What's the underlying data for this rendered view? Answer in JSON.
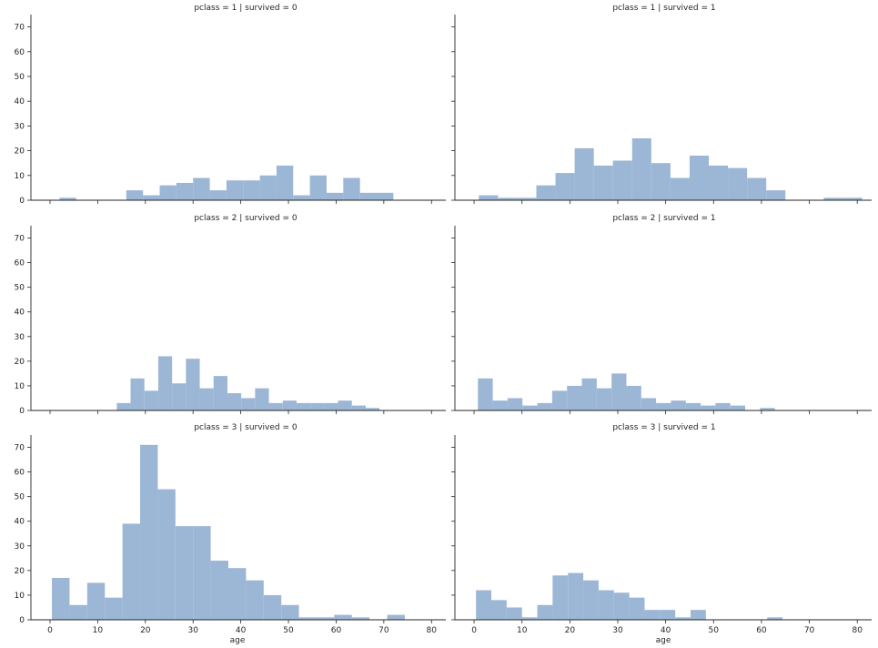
{
  "figure": {
    "xlabel": "age",
    "bar_color": "#9cb6d5",
    "axis_color": "#262626"
  },
  "chart_data": [
    {
      "type": "bar",
      "title": "pclass = 1 | survived = 0",
      "bin_width": 3.5,
      "bin_starts": [
        2,
        5.5,
        9,
        12.5,
        16,
        19.5,
        23,
        26.5,
        30,
        33.5,
        37,
        40.5,
        44,
        47.5,
        51,
        54.5,
        58,
        61.5,
        65,
        68.5
      ],
      "values": [
        1,
        0,
        0,
        0,
        4,
        2,
        6,
        7,
        9,
        4,
        8,
        8,
        10,
        14,
        2,
        10,
        3,
        9,
        3,
        3
      ],
      "xlim": [
        -4,
        83
      ],
      "ylim": [
        0,
        75
      ],
      "xticks": [],
      "yticks": [
        "0",
        "10",
        "20",
        "30",
        "40",
        "50",
        "60",
        "70"
      ]
    },
    {
      "type": "bar",
      "title": "pclass = 1 | survived = 1",
      "bin_width": 4,
      "bin_starts": [
        1,
        5,
        9,
        13,
        17,
        21,
        25,
        29,
        33,
        37,
        41,
        45,
        49,
        53,
        57,
        61,
        65,
        69,
        73,
        77
      ],
      "values": [
        2,
        1,
        1,
        6,
        11,
        21,
        14,
        16,
        25,
        15,
        9,
        18,
        14,
        13,
        9,
        4,
        0,
        0,
        1,
        1
      ],
      "xlim": [
        -4,
        83
      ],
      "ylim": [
        0,
        75
      ],
      "xticks": [],
      "yticks": []
    },
    {
      "type": "bar",
      "title": "pclass = 2 | survived = 0",
      "bin_width": 2.9,
      "bin_starts": [
        14,
        16.9,
        19.8,
        22.7,
        25.6,
        28.5,
        31.4,
        34.3,
        37.2,
        40.1,
        43,
        45.9,
        48.8,
        51.7,
        54.6,
        57.5,
        60.4,
        63.3,
        66.2
      ],
      "values": [
        3,
        13,
        8,
        22,
        11,
        21,
        9,
        14,
        7,
        5,
        9,
        3,
        4,
        3,
        3,
        3,
        4,
        2,
        1
      ],
      "xlim": [
        -4,
        83
      ],
      "ylim": [
        0,
        75
      ],
      "xticks": [],
      "yticks": [
        "0",
        "10",
        "20",
        "30",
        "40",
        "50",
        "60",
        "70"
      ]
    },
    {
      "type": "bar",
      "title": "pclass = 2 | survived = 1",
      "bin_width": 3.1,
      "bin_starts": [
        0.8,
        3.9,
        7,
        10.1,
        13.2,
        16.3,
        19.4,
        22.5,
        25.6,
        28.7,
        31.8,
        34.9,
        38,
        41.1,
        44.2,
        47.3,
        50.4,
        53.5,
        56.6,
        59.7
      ],
      "values": [
        13,
        4,
        5,
        2,
        3,
        8,
        10,
        13,
        9,
        15,
        10,
        5,
        3,
        4,
        3,
        2,
        3,
        2,
        0,
        1
      ],
      "xlim": [
        -4,
        83
      ],
      "ylim": [
        0,
        75
      ],
      "xticks": [],
      "yticks": []
    },
    {
      "type": "bar",
      "title": "pclass = 3 | survived = 0",
      "bin_width": 3.7,
      "bin_starts": [
        0.4,
        4.1,
        7.8,
        11.5,
        15.2,
        18.9,
        22.6,
        26.3,
        30,
        33.7,
        37.4,
        41.1,
        44.8,
        48.5,
        52.2,
        55.9,
        59.6,
        63.3,
        67,
        70.7
      ],
      "values": [
        17,
        6,
        15,
        9,
        39,
        71,
        53,
        38,
        38,
        24,
        21,
        16,
        10,
        6,
        1,
        1,
        2,
        1,
        0,
        2
      ],
      "xlim": [
        -4,
        83
      ],
      "ylim": [
        0,
        75
      ],
      "xticks": [
        "0",
        "10",
        "20",
        "30",
        "40",
        "50",
        "60",
        "70",
        "80"
      ],
      "yticks": [
        "0",
        "10",
        "20",
        "30",
        "40",
        "50",
        "60",
        "70"
      ],
      "xlabel": "age"
    },
    {
      "type": "bar",
      "title": "pclass = 3 | survived = 1",
      "bin_width": 3.2,
      "bin_starts": [
        0.4,
        3.6,
        6.8,
        10,
        13.2,
        16.4,
        19.6,
        22.8,
        26,
        29.2,
        32.4,
        35.6,
        38.8,
        42,
        45.2,
        48.4,
        51.6,
        54.8,
        58,
        61.2
      ],
      "values": [
        12,
        8,
        5,
        1,
        6,
        18,
        19,
        16,
        12,
        11,
        9,
        4,
        4,
        1,
        4,
        0,
        0,
        0,
        0,
        1
      ],
      "xlim": [
        -4,
        83
      ],
      "ylim": [
        0,
        75
      ],
      "xticks": [
        "0",
        "10",
        "20",
        "30",
        "40",
        "50",
        "60",
        "70",
        "80"
      ],
      "yticks": [],
      "xlabel": "age"
    }
  ]
}
